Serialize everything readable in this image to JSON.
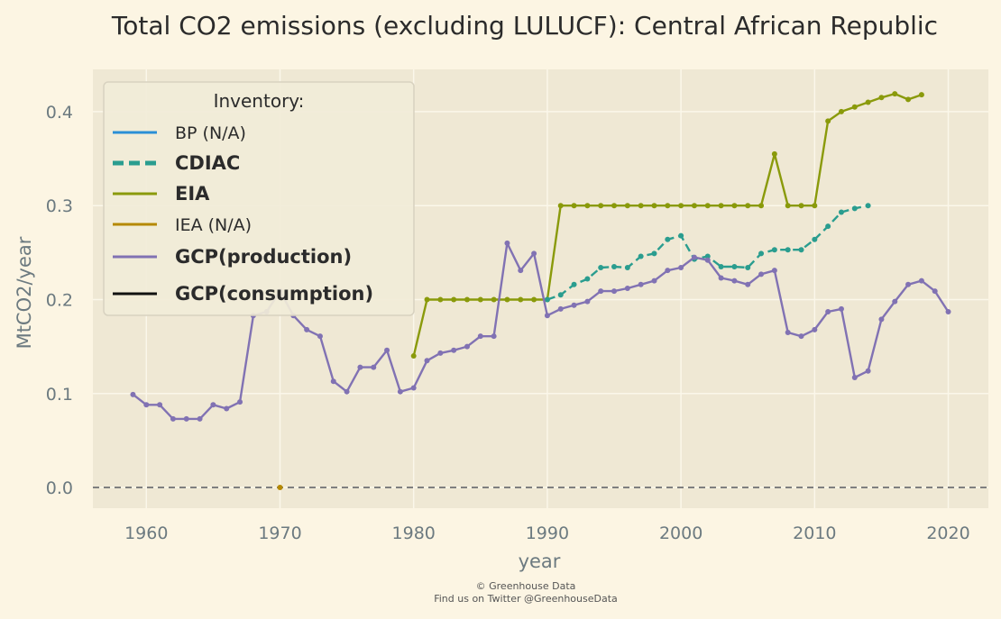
{
  "chart_data": {
    "type": "line",
    "title": "Total CO2 emissions (excluding LULUCF): Central African Republic",
    "xlabel": "year",
    "ylabel": "MtCO2/year",
    "xlim": [
      1956,
      2023
    ],
    "ylim": [
      -0.022,
      0.445
    ],
    "xticks": [
      1960,
      1970,
      1980,
      1990,
      2000,
      2010,
      2020
    ],
    "yticks": [
      0.0,
      0.1,
      0.2,
      0.3,
      0.4
    ],
    "ytick_labels": [
      "0.0",
      "0.1",
      "0.2",
      "0.3",
      "0.4"
    ],
    "grid": true,
    "reference_line": 0.0,
    "legend": {
      "title": "Inventory:",
      "position": "top-left",
      "entries": [
        {
          "label": "BP (N/A)",
          "color": "#2a8fd6",
          "style": "solid",
          "bold": false
        },
        {
          "label": "CDIAC",
          "color": "#2a9d8f",
          "style": "dashed",
          "bold": true
        },
        {
          "label": "EIA",
          "color": "#8a9a0b",
          "style": "solid",
          "bold": true
        },
        {
          "label": "IEA (N/A)",
          "color": "#b58900",
          "style": "solid",
          "bold": false
        },
        {
          "label": "GCP(production)",
          "color": "#8172b3",
          "style": "solid",
          "bold": true
        },
        {
          "label": "GCP(consumption)",
          "color": "#111111",
          "style": "solid",
          "bold": true
        }
      ]
    },
    "series": [
      {
        "name": "EIA",
        "color": "#8a9a0b",
        "style": "solid",
        "x": [
          1980,
          1981,
          1982,
          1983,
          1984,
          1985,
          1986,
          1987,
          1988,
          1989,
          1990,
          1991,
          1992,
          1993,
          1994,
          1995,
          1996,
          1997,
          1998,
          1999,
          2000,
          2001,
          2002,
          2003,
          2004,
          2005,
          2006,
          2007,
          2008,
          2009,
          2010,
          2011,
          2012,
          2013,
          2014,
          2015,
          2016,
          2017,
          2018
        ],
        "y": [
          0.14,
          0.2,
          0.2,
          0.2,
          0.2,
          0.2,
          0.2,
          0.2,
          0.2,
          0.2,
          0.2,
          0.3,
          0.3,
          0.3,
          0.3,
          0.3,
          0.3,
          0.3,
          0.3,
          0.3,
          0.3,
          0.3,
          0.3,
          0.3,
          0.3,
          0.3,
          0.3,
          0.355,
          0.3,
          0.3,
          0.3,
          0.39,
          0.4,
          0.405,
          0.41,
          0.415,
          0.419,
          0.413,
          0.418
        ]
      },
      {
        "name": "CDIAC",
        "color": "#2a9d8f",
        "style": "dashed",
        "x": [
          1990,
          1991,
          1992,
          1993,
          1994,
          1995,
          1996,
          1997,
          1998,
          1999,
          2000,
          2001,
          2002,
          2003,
          2004,
          2005,
          2006,
          2007,
          2008,
          2009,
          2010,
          2011,
          2012,
          2013,
          2014
        ],
        "y": [
          0.2,
          0.205,
          0.216,
          0.222,
          0.234,
          0.235,
          0.234,
          0.246,
          0.249,
          0.264,
          0.268,
          0.243,
          0.246,
          0.235,
          0.235,
          0.234,
          0.249,
          0.253,
          0.253,
          0.253,
          0.264,
          0.278,
          0.293,
          0.297,
          0.3
        ]
      },
      {
        "name": "GCP(production)",
        "color": "#8172b3",
        "style": "solid",
        "x": [
          1959,
          1960,
          1961,
          1962,
          1963,
          1964,
          1965,
          1966,
          1967,
          1968,
          1969,
          1970,
          1971,
          1972,
          1973,
          1974,
          1975,
          1976,
          1977,
          1978,
          1979,
          1980,
          1981,
          1982,
          1983,
          1984,
          1985,
          1986,
          1987,
          1988,
          1989,
          1990,
          1991,
          1992,
          1993,
          1994,
          1995,
          1996,
          1997,
          1998,
          1999,
          2000,
          2001,
          2002,
          2003,
          2004,
          2005,
          2006,
          2007,
          2008,
          2009,
          2010,
          2011,
          2012,
          2013,
          2014,
          2015,
          2016,
          2017,
          2018,
          2019,
          2020
        ],
        "y": [
          0.099,
          0.088,
          0.088,
          0.073,
          0.073,
          0.073,
          0.088,
          0.084,
          0.091,
          0.183,
          0.187,
          0.209,
          0.183,
          0.168,
          0.161,
          0.113,
          0.102,
          0.128,
          0.128,
          0.146,
          0.102,
          0.106,
          0.135,
          0.143,
          0.146,
          0.15,
          0.161,
          0.161,
          0.26,
          0.231,
          0.249,
          0.183,
          0.19,
          0.194,
          0.198,
          0.209,
          0.209,
          0.212,
          0.216,
          0.22,
          0.231,
          0.234,
          0.245,
          0.242,
          0.223,
          0.22,
          0.216,
          0.227,
          0.231,
          0.165,
          0.161,
          0.168,
          0.187,
          0.19,
          0.117,
          0.124,
          0.179,
          0.198,
          0.216,
          0.22,
          0.209,
          0.187
        ]
      },
      {
        "name": "IEA",
        "color": "#b58900",
        "style": "point",
        "x": [
          1970
        ],
        "y": [
          0.0
        ]
      }
    ]
  },
  "footer": {
    "line1": "© Greenhouse Data",
    "line2": "Find us on Twitter @GreenhouseData"
  }
}
